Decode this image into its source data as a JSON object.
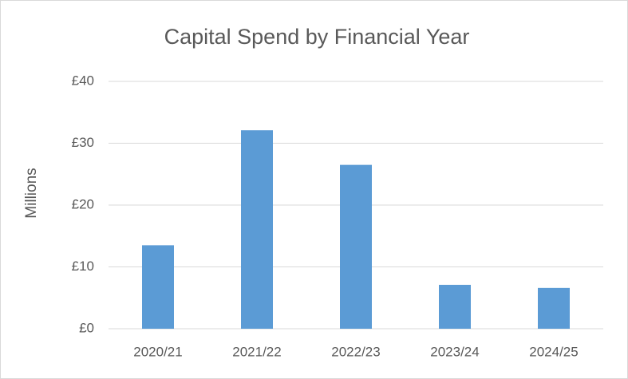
{
  "chart_data": {
    "type": "bar",
    "title": "Capital Spend by Financial Year",
    "y_label": "Millions",
    "categories": [
      "2020/21",
      "2021/22",
      "2022/23",
      "2023/24",
      "2024/25"
    ],
    "values": [
      13.5,
      32.1,
      26.5,
      7.1,
      6.6
    ],
    "color": "#5b9bd5",
    "ylim": [
      0,
      40
    ],
    "yticks": [
      {
        "value": 0,
        "label": "£0"
      },
      {
        "value": 10,
        "label": "£10"
      },
      {
        "value": 20,
        "label": "£20"
      },
      {
        "value": 30,
        "label": "£30"
      },
      {
        "value": 40,
        "label": "£40"
      }
    ],
    "grid": true
  }
}
